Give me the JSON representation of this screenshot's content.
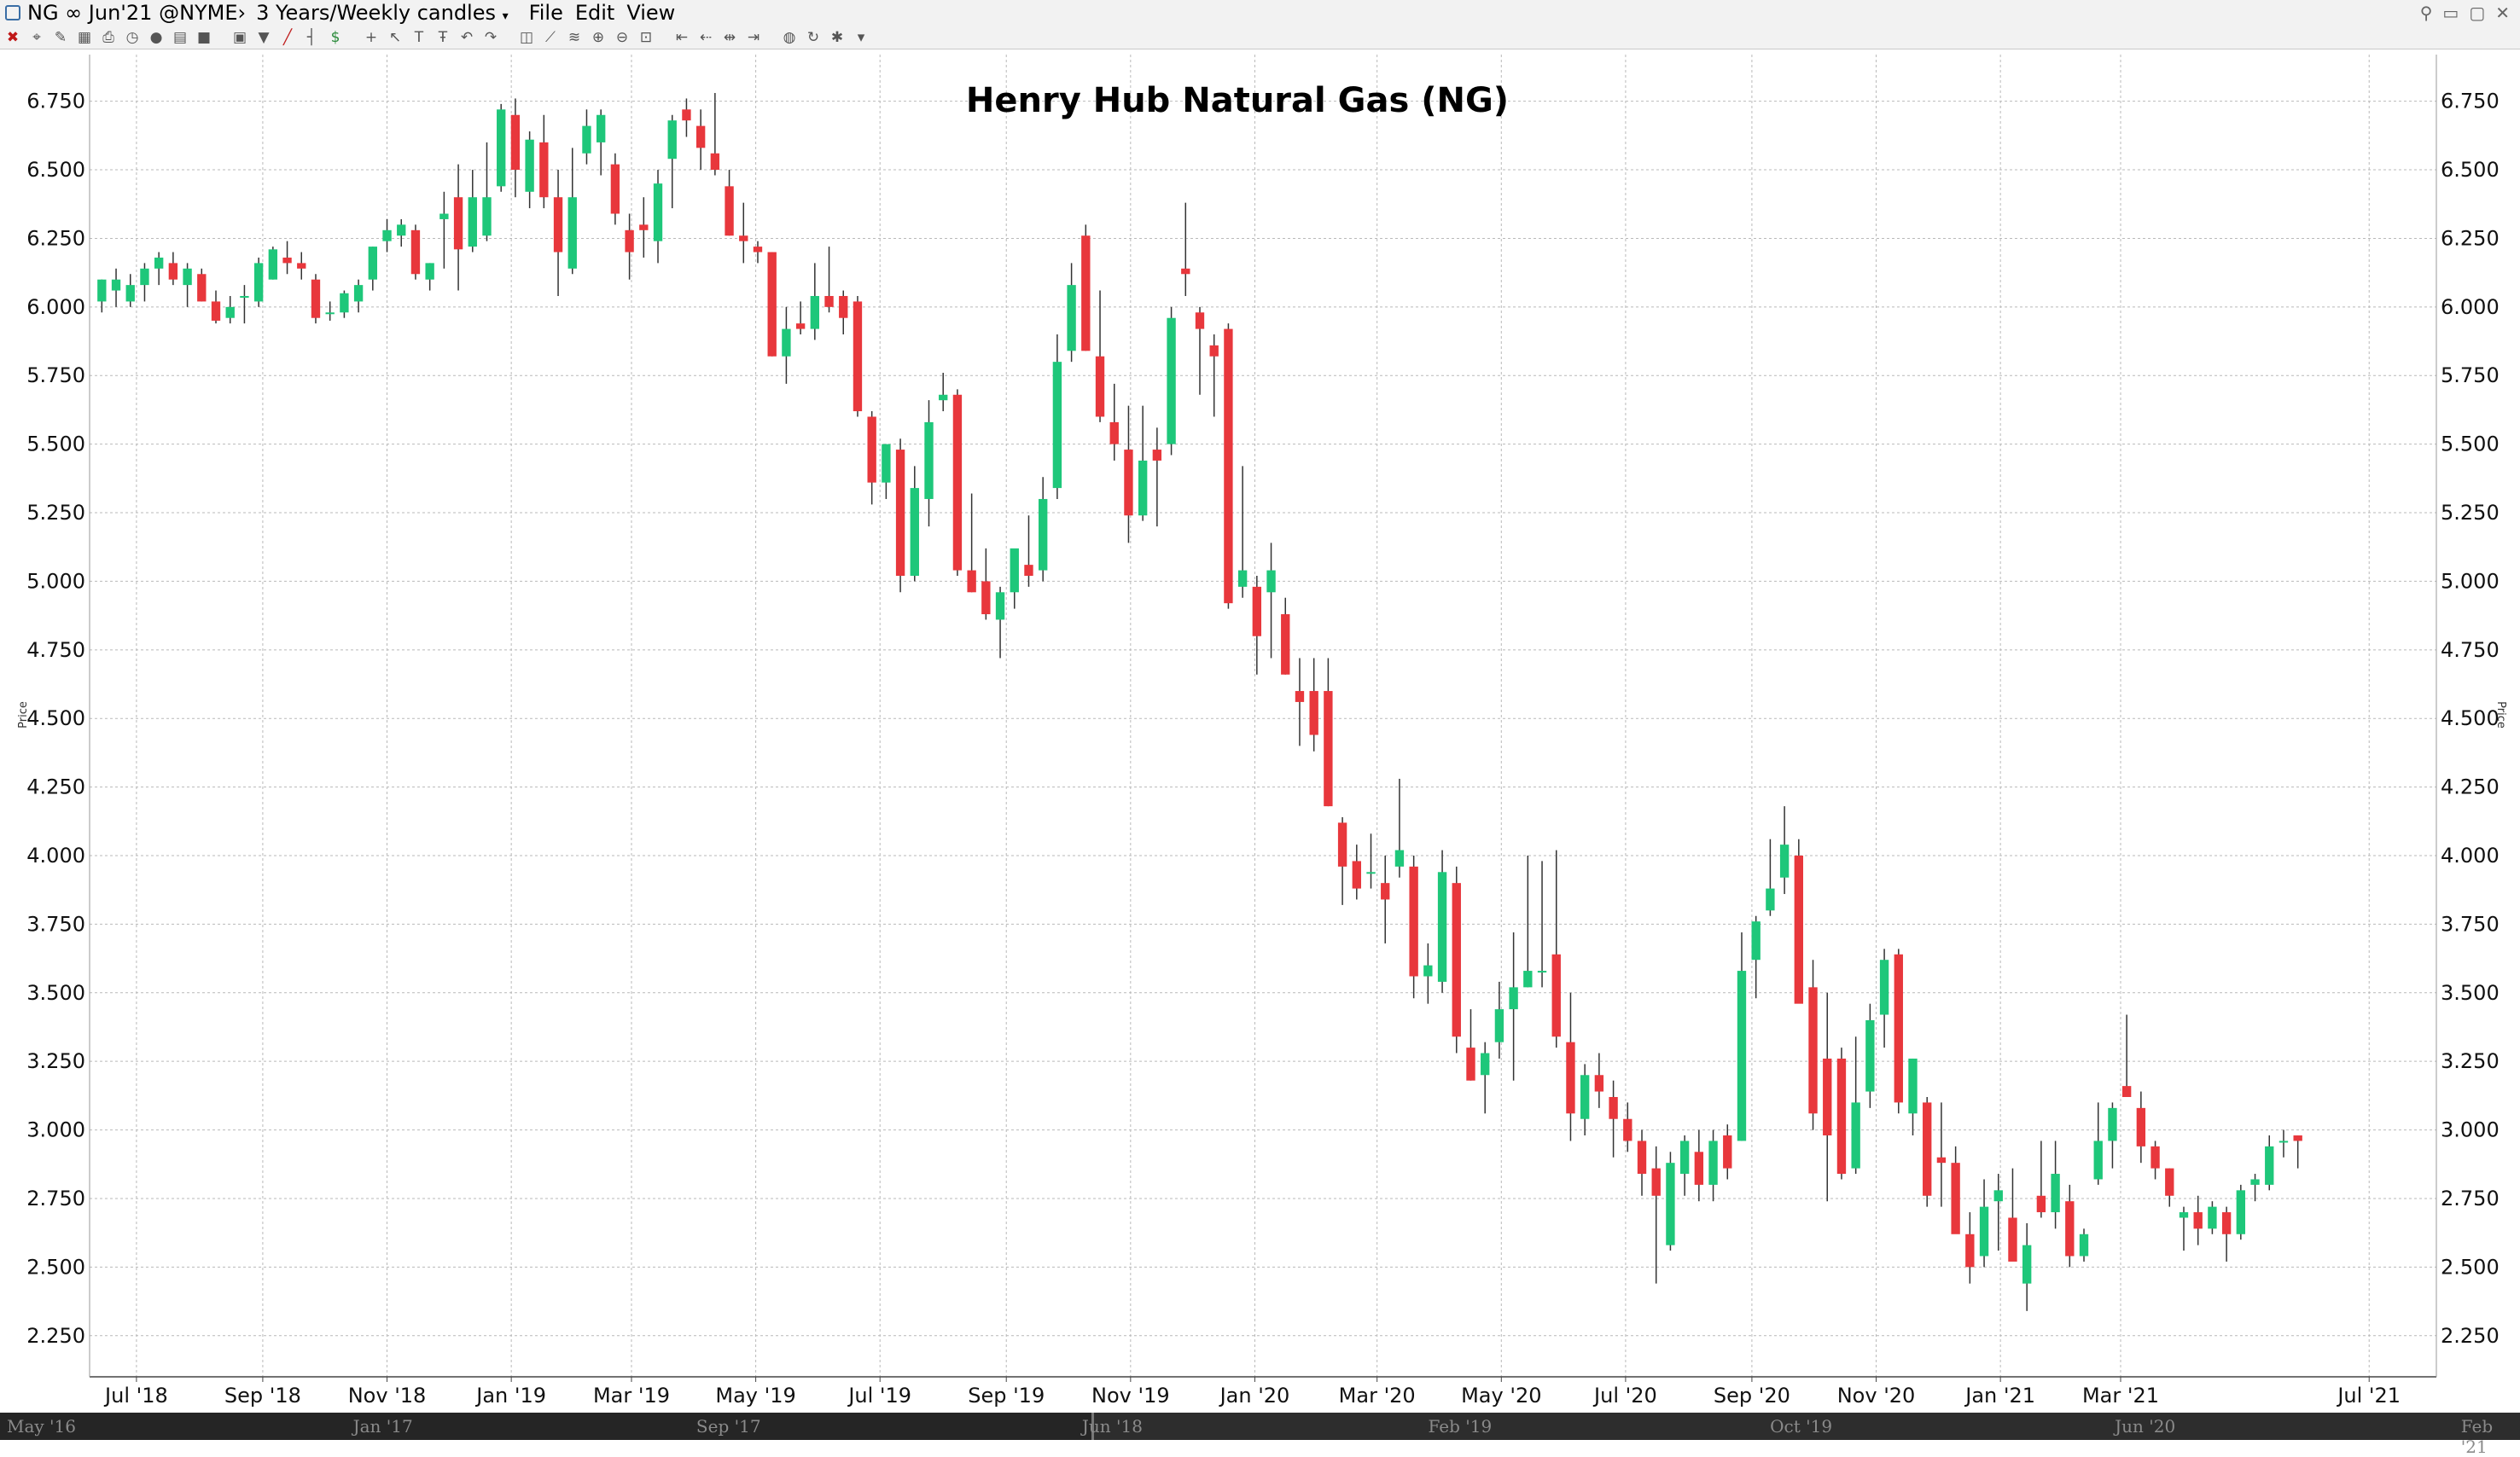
{
  "window": {
    "symbol_title": "NG ∞ Jun'21 @NYME›",
    "period": "3 Years/Weekly candles",
    "menus": [
      "File",
      "Edit",
      "View"
    ]
  },
  "toolbar": {
    "icons": [
      "close-icon",
      "crosshair-icon",
      "brush-icon",
      "grid-icon",
      "print-icon",
      "clock-icon",
      "record-icon",
      "table-icon",
      "stop-icon",
      "template-icon",
      "filter-icon",
      "line-draw-icon",
      "bar-style-icon",
      "dollar-icon",
      "cursor-icon",
      "arrow-cursor-icon",
      "text-icon",
      "text-box-icon",
      "undo-icon",
      "redo-icon",
      "snapshot-icon",
      "trendline-icon",
      "fibonacci-icon",
      "zoom-in-icon",
      "zoom-out-icon",
      "zoom-fit-icon",
      "scroll-start-icon",
      "scroll-left-icon",
      "scroll-position-icon",
      "scroll-end-icon",
      "globe-icon",
      "refresh-icon",
      "settings-icon",
      "dropdown-icon"
    ]
  },
  "colors": {
    "up": "#1ec77a",
    "down": "#e8373c",
    "wick": "#333333",
    "grid": "#b9b9b9",
    "background": "#ffffff"
  },
  "chart_data": {
    "type": "candlestick",
    "title": "Henry Hub Natural Gas (NG)",
    "ylabel": "Price",
    "ylim": [
      2.1,
      6.92
    ],
    "y_ticks": [
      "6.750",
      "6.500",
      "6.250",
      "6.000",
      "5.750",
      "5.500",
      "5.250",
      "5.000",
      "4.750",
      "4.500",
      "4.250",
      "4.000",
      "3.750",
      "3.500",
      "3.250",
      "3.000",
      "2.750",
      "2.500",
      "2.250"
    ],
    "x_range": [
      "2018-06-08",
      "2021-08-03"
    ],
    "x_ticks": [
      {
        "date": "2018-07-01",
        "label": "Jul '18"
      },
      {
        "date": "2018-09-01",
        "label": "Sep '18"
      },
      {
        "date": "2018-11-01",
        "label": "Nov '18"
      },
      {
        "date": "2019-01-01",
        "label": "Jan '19"
      },
      {
        "date": "2019-03-01",
        "label": "Mar '19"
      },
      {
        "date": "2019-05-01",
        "label": "May '19"
      },
      {
        "date": "2019-07-01",
        "label": "Jul '19"
      },
      {
        "date": "2019-09-01",
        "label": "Sep '19"
      },
      {
        "date": "2019-11-01",
        "label": "Nov '19"
      },
      {
        "date": "2020-01-01",
        "label": "Jan '20"
      },
      {
        "date": "2020-03-01",
        "label": "Mar '20"
      },
      {
        "date": "2020-05-01",
        "label": "May '20"
      },
      {
        "date": "2020-07-01",
        "label": "Jul '20"
      },
      {
        "date": "2020-09-01",
        "label": "Sep '20"
      },
      {
        "date": "2020-11-01",
        "label": "Nov '20"
      },
      {
        "date": "2021-01-01",
        "label": "Jan '21"
      },
      {
        "date": "2021-03-01",
        "label": "Mar '21"
      },
      {
        "date": "2021-07-01",
        "label": "Jul '21"
      }
    ],
    "week_start": "2018-06-11",
    "weeks": [
      [
        6.02,
        6.1,
        5.98,
        6.1
      ],
      [
        6.06,
        6.14,
        6.0,
        6.1
      ],
      [
        6.02,
        6.12,
        6.0,
        6.08
      ],
      [
        6.08,
        6.16,
        6.02,
        6.14
      ],
      [
        6.14,
        6.2,
        6.08,
        6.18
      ],
      [
        6.16,
        6.2,
        6.08,
        6.1
      ],
      [
        6.08,
        6.16,
        6.0,
        6.14
      ],
      [
        6.12,
        6.14,
        6.02,
        6.02
      ],
      [
        6.02,
        6.06,
        5.94,
        5.95
      ],
      [
        5.96,
        6.04,
        5.94,
        6.0
      ],
      [
        6.04,
        6.08,
        5.94,
        6.04
      ],
      [
        6.02,
        6.18,
        6.0,
        6.16
      ],
      [
        6.1,
        6.22,
        6.1,
        6.21
      ],
      [
        6.18,
        6.24,
        6.12,
        6.16
      ],
      [
        6.16,
        6.2,
        6.1,
        6.14
      ],
      [
        6.1,
        6.12,
        5.94,
        5.96
      ],
      [
        5.98,
        6.02,
        5.95,
        5.98
      ],
      [
        5.98,
        6.06,
        5.96,
        6.05
      ],
      [
        6.02,
        6.1,
        5.98,
        6.08
      ],
      [
        6.1,
        6.22,
        6.06,
        6.22
      ],
      [
        6.24,
        6.32,
        6.2,
        6.28
      ],
      [
        6.26,
        6.32,
        6.22,
        6.3
      ],
      [
        6.28,
        6.3,
        6.1,
        6.12
      ],
      [
        6.1,
        6.16,
        6.06,
        6.16
      ],
      [
        6.32,
        6.42,
        6.14,
        6.34
      ],
      [
        6.4,
        6.52,
        6.06,
        6.21
      ],
      [
        6.22,
        6.5,
        6.2,
        6.4
      ],
      [
        6.26,
        6.6,
        6.24,
        6.4
      ],
      [
        6.44,
        6.74,
        6.42,
        6.72
      ],
      [
        6.7,
        6.76,
        6.4,
        6.5
      ],
      [
        6.42,
        6.64,
        6.36,
        6.61
      ],
      [
        6.6,
        6.7,
        6.36,
        6.4
      ],
      [
        6.4,
        6.5,
        6.04,
        6.2
      ],
      [
        6.14,
        6.58,
        6.12,
        6.4
      ],
      [
        6.56,
        6.72,
        6.52,
        6.66
      ],
      [
        6.6,
        6.72,
        6.48,
        6.7
      ],
      [
        6.52,
        6.56,
        6.3,
        6.34
      ],
      [
        6.28,
        6.34,
        6.1,
        6.2
      ],
      [
        6.3,
        6.4,
        6.18,
        6.28
      ],
      [
        6.24,
        6.5,
        6.16,
        6.45
      ],
      [
        6.54,
        6.7,
        6.36,
        6.68
      ],
      [
        6.72,
        6.76,
        6.62,
        6.68
      ],
      [
        6.66,
        6.72,
        6.5,
        6.58
      ],
      [
        6.56,
        6.78,
        6.48,
        6.5
      ],
      [
        6.44,
        6.5,
        6.26,
        6.26
      ],
      [
        6.26,
        6.38,
        6.16,
        6.24
      ],
      [
        6.22,
        6.24,
        6.16,
        6.2
      ],
      [
        6.2,
        6.2,
        5.82,
        5.82
      ],
      [
        5.82,
        6.0,
        5.72,
        5.92
      ],
      [
        5.94,
        6.02,
        5.9,
        5.92
      ],
      [
        5.92,
        6.16,
        5.88,
        6.04
      ],
      [
        6.04,
        6.22,
        5.98,
        6.0
      ],
      [
        6.04,
        6.06,
        5.9,
        5.96
      ],
      [
        6.02,
        6.04,
        5.6,
        5.62
      ],
      [
        5.6,
        5.62,
        5.28,
        5.36
      ],
      [
        5.36,
        5.5,
        5.3,
        5.5
      ],
      [
        5.48,
        5.52,
        4.96,
        5.02
      ],
      [
        5.02,
        5.42,
        5.0,
        5.34
      ],
      [
        5.3,
        5.66,
        5.2,
        5.58
      ],
      [
        5.66,
        5.76,
        5.62,
        5.68
      ],
      [
        5.68,
        5.7,
        5.02,
        5.04
      ],
      [
        5.04,
        5.32,
        4.96,
        4.96
      ],
      [
        5.0,
        5.12,
        4.86,
        4.88
      ],
      [
        4.86,
        4.98,
        4.72,
        4.96
      ],
      [
        4.96,
        5.1,
        4.9,
        5.12
      ],
      [
        5.06,
        5.24,
        4.98,
        5.02
      ],
      [
        5.04,
        5.38,
        5.0,
        5.3
      ],
      [
        5.34,
        5.9,
        5.3,
        5.8
      ],
      [
        5.84,
        6.16,
        5.8,
        6.08
      ],
      [
        6.26,
        6.3,
        5.84,
        5.84
      ],
      [
        5.82,
        6.06,
        5.58,
        5.6
      ],
      [
        5.58,
        5.72,
        5.44,
        5.5
      ],
      [
        5.48,
        5.64,
        5.14,
        5.24
      ],
      [
        5.24,
        5.64,
        5.22,
        5.44
      ],
      [
        5.48,
        5.56,
        5.2,
        5.44
      ],
      [
        5.5,
        6.0,
        5.46,
        5.96
      ],
      [
        6.14,
        6.38,
        6.04,
        6.12
      ],
      [
        5.98,
        6.0,
        5.68,
        5.92
      ],
      [
        5.86,
        5.9,
        5.6,
        5.82
      ],
      [
        5.92,
        5.94,
        4.9,
        4.92
      ],
      [
        4.98,
        5.42,
        4.94,
        5.04
      ],
      [
        4.98,
        5.02,
        4.66,
        4.8
      ],
      [
        4.96,
        5.14,
        4.72,
        5.04
      ],
      [
        4.88,
        4.94,
        4.66,
        4.66
      ],
      [
        4.6,
        4.72,
        4.4,
        4.56
      ],
      [
        4.6,
        4.72,
        4.38,
        4.44
      ],
      [
        4.6,
        4.72,
        4.18,
        4.18
      ],
      [
        4.12,
        4.14,
        3.82,
        3.96
      ],
      [
        3.98,
        4.04,
        3.84,
        3.88
      ],
      [
        3.94,
        4.08,
        3.88,
        3.94
      ],
      [
        3.9,
        4.0,
        3.68,
        3.84
      ],
      [
        3.96,
        4.28,
        3.92,
        4.02
      ],
      [
        3.96,
        4.0,
        3.48,
        3.56
      ],
      [
        3.56,
        3.68,
        3.46,
        3.6
      ],
      [
        3.54,
        4.02,
        3.5,
        3.94
      ],
      [
        3.9,
        3.96,
        3.28,
        3.34
      ],
      [
        3.3,
        3.44,
        3.18,
        3.18
      ],
      [
        3.2,
        3.32,
        3.06,
        3.28
      ],
      [
        3.32,
        3.54,
        3.26,
        3.44
      ],
      [
        3.44,
        3.72,
        3.18,
        3.52
      ],
      [
        3.52,
        4.0,
        3.52,
        3.58
      ],
      [
        3.58,
        3.98,
        3.52,
        3.58
      ],
      [
        3.64,
        4.02,
        3.3,
        3.34
      ],
      [
        3.32,
        3.5,
        2.96,
        3.06
      ],
      [
        3.04,
        3.24,
        2.98,
        3.2
      ],
      [
        3.2,
        3.28,
        3.08,
        3.14
      ],
      [
        3.12,
        3.18,
        2.9,
        3.04
      ],
      [
        3.04,
        3.1,
        2.92,
        2.96
      ],
      [
        2.96,
        3.0,
        2.76,
        2.84
      ],
      [
        2.86,
        2.94,
        2.44,
        2.76
      ],
      [
        2.58,
        2.92,
        2.56,
        2.88
      ],
      [
        2.84,
        2.98,
        2.76,
        2.96
      ],
      [
        2.92,
        3.0,
        2.74,
        2.8
      ],
      [
        2.8,
        3.0,
        2.74,
        2.96
      ],
      [
        2.98,
        3.02,
        2.82,
        2.86
      ],
      [
        2.96,
        3.72,
        2.96,
        3.58
      ],
      [
        3.62,
        3.78,
        3.48,
        3.76
      ],
      [
        3.8,
        4.06,
        3.78,
        3.88
      ],
      [
        3.92,
        4.18,
        3.86,
        4.04
      ],
      [
        4.0,
        4.06,
        3.48,
        3.46
      ],
      [
        3.52,
        3.62,
        3.0,
        3.06
      ],
      [
        3.26,
        3.5,
        2.74,
        2.98
      ],
      [
        3.26,
        3.3,
        2.82,
        2.84
      ],
      [
        2.86,
        3.34,
        2.84,
        3.1
      ],
      [
        3.14,
        3.46,
        3.08,
        3.4
      ],
      [
        3.42,
        3.66,
        3.3,
        3.62
      ],
      [
        3.64,
        3.66,
        3.06,
        3.1
      ],
      [
        3.06,
        3.26,
        2.98,
        3.26
      ],
      [
        3.1,
        3.12,
        2.72,
        2.76
      ],
      [
        2.9,
        3.1,
        2.72,
        2.88
      ],
      [
        2.88,
        2.94,
        2.64,
        2.62
      ],
      [
        2.62,
        2.7,
        2.44,
        2.5
      ],
      [
        2.54,
        2.82,
        2.5,
        2.72
      ],
      [
        2.74,
        2.84,
        2.56,
        2.78
      ],
      [
        2.68,
        2.86,
        2.6,
        2.52
      ],
      [
        2.44,
        2.66,
        2.34,
        2.58
      ],
      [
        2.76,
        2.96,
        2.68,
        2.7
      ],
      [
        2.7,
        2.96,
        2.64,
        2.84
      ],
      [
        2.74,
        2.8,
        2.5,
        2.54
      ],
      [
        2.54,
        2.64,
        2.52,
        2.62
      ],
      [
        2.82,
        3.1,
        2.8,
        2.96
      ],
      [
        2.96,
        3.1,
        2.86,
        3.08
      ],
      [
        3.16,
        3.42,
        3.14,
        3.12
      ],
      [
        3.08,
        3.14,
        2.88,
        2.94
      ],
      [
        2.94,
        2.96,
        2.82,
        2.86
      ],
      [
        2.86,
        2.86,
        2.72,
        2.76
      ],
      [
        2.68,
        2.72,
        2.56,
        2.7
      ],
      [
        2.7,
        2.76,
        2.58,
        2.64
      ],
      [
        2.64,
        2.74,
        2.62,
        2.72
      ],
      [
        2.7,
        2.72,
        2.52,
        2.62
      ],
      [
        2.62,
        2.8,
        2.6,
        2.78
      ],
      [
        2.8,
        2.84,
        2.74,
        2.82
      ],
      [
        2.8,
        2.98,
        2.78,
        2.94
      ],
      [
        2.96,
        3.0,
        2.9,
        2.96
      ],
      [
        2.98,
        2.98,
        2.86,
        2.96
      ]
    ]
  },
  "navigator": {
    "labels": [
      {
        "date": "2016-05-01",
        "label": "May '16"
      },
      {
        "date": "2017-01-01",
        "label": "Jan '17"
      },
      {
        "date": "2017-09-01",
        "label": "Sep '17"
      },
      {
        "date": "2018-06-01",
        "label": "Jun '18"
      },
      {
        "date": "2019-02-01",
        "label": "Feb '19"
      },
      {
        "date": "2019-10-01",
        "label": "Oct '19"
      },
      {
        "date": "2020-06-01",
        "label": "Jun '20"
      },
      {
        "date": "2021-02-01",
        "label": "Feb '21"
      }
    ],
    "range": [
      "2016-05-01",
      "2021-03-10"
    ],
    "visible_from": "2018-06-08"
  }
}
